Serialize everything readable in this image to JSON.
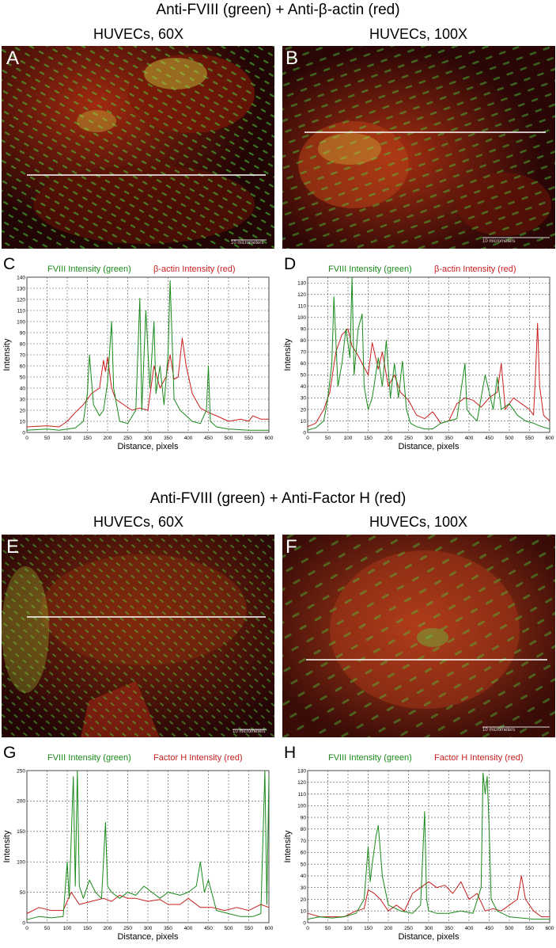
{
  "sections": [
    {
      "title": "Anti-FVIII (green) + Anti-β-actin (red)",
      "left_col": "HUVECs, 60X",
      "right_col": "HUVECs, 100X"
    },
    {
      "title": "Anti-FVIII (green) + Anti-Factor H (red)",
      "left_col": "HUVECs, 60X",
      "right_col": "HUVECs, 100X"
    }
  ],
  "panels": {
    "A": {
      "label": "A",
      "scalebar": "10 micrometers"
    },
    "B": {
      "label": "B",
      "scalebar": "10 micrometers"
    },
    "E": {
      "label": "E",
      "scalebar": "10 micrometers"
    },
    "F": {
      "label": "F",
      "scalebar": "10 micrometers"
    },
    "C": {
      "label": "C"
    },
    "D": {
      "label": "D"
    },
    "G": {
      "label": "G"
    },
    "H": {
      "label": "H"
    }
  },
  "colors": {
    "green": "#1a8a1a",
    "red": "#c81e1e"
  },
  "chart_data": [
    {
      "panel": "C",
      "type": "line",
      "xlabel": "Distance, pixels",
      "ylabel": "Intensity",
      "xlim": [
        0,
        600
      ],
      "ylim": [
        0,
        140
      ],
      "xticks": [
        0,
        50,
        100,
        150,
        200,
        250,
        300,
        350,
        400,
        450,
        500,
        550,
        600
      ],
      "yticks": [
        0,
        10,
        20,
        30,
        40,
        50,
        60,
        70,
        80,
        90,
        100,
        110,
        120,
        130,
        140
      ],
      "series": [
        {
          "name": "FVIII Intensity (green)",
          "color": "green",
          "x": [
            0,
            50,
            80,
            100,
            120,
            140,
            150,
            155,
            165,
            180,
            190,
            200,
            210,
            215,
            230,
            250,
            270,
            280,
            285,
            295,
            305,
            315,
            320,
            330,
            340,
            350,
            355,
            365,
            380,
            395,
            410,
            430,
            445,
            450,
            455,
            470,
            500,
            550,
            600
          ],
          "y": [
            2,
            3,
            2,
            3,
            4,
            10,
            35,
            70,
            25,
            15,
            20,
            45,
            100,
            40,
            10,
            8,
            20,
            121,
            20,
            110,
            40,
            100,
            35,
            60,
            25,
            70,
            137,
            30,
            20,
            15,
            10,
            8,
            20,
            60,
            10,
            5,
            3,
            2,
            2
          ]
        },
        {
          "name": "β-actin Intensity (red)",
          "color": "red",
          "x": [
            0,
            50,
            80,
            100,
            120,
            140,
            160,
            180,
            190,
            195,
            200,
            210,
            220,
            240,
            260,
            280,
            300,
            315,
            330,
            345,
            355,
            365,
            375,
            385,
            395,
            410,
            430,
            450,
            470,
            500,
            530,
            550,
            560,
            580,
            600
          ],
          "y": [
            5,
            6,
            5,
            10,
            18,
            25,
            35,
            40,
            65,
            55,
            68,
            40,
            30,
            25,
            20,
            22,
            20,
            60,
            40,
            50,
            70,
            48,
            50,
            85,
            60,
            35,
            22,
            18,
            15,
            10,
            12,
            10,
            15,
            12,
            12
          ]
        }
      ]
    },
    {
      "panel": "D",
      "type": "line",
      "xlabel": "Distance, pixels",
      "ylabel": "Intensity",
      "xlim": [
        0,
        600
      ],
      "ylim": [
        0,
        135
      ],
      "xticks": [
        0,
        50,
        100,
        150,
        200,
        250,
        300,
        350,
        400,
        450,
        500,
        550,
        600
      ],
      "yticks": [
        0,
        10,
        20,
        30,
        40,
        50,
        60,
        70,
        80,
        90,
        100,
        110,
        120,
        130
      ],
      "series": [
        {
          "name": "FVIII Intensity (green)",
          "color": "green",
          "x": [
            0,
            20,
            40,
            50,
            60,
            65,
            75,
            85,
            95,
            105,
            110,
            115,
            125,
            135,
            140,
            150,
            160,
            175,
            185,
            195,
            205,
            215,
            225,
            235,
            245,
            255,
            270,
            290,
            310,
            330,
            350,
            370,
            390,
            395,
            405,
            420,
            440,
            460,
            470,
            480,
            500,
            520,
            540,
            560,
            580,
            600
          ],
          "y": [
            2,
            4,
            10,
            30,
            60,
            118,
            40,
            60,
            90,
            65,
            135,
            50,
            90,
            103,
            40,
            20,
            30,
            65,
            40,
            80,
            30,
            60,
            30,
            62,
            20,
            8,
            5,
            3,
            3,
            8,
            10,
            12,
            60,
            20,
            15,
            10,
            50,
            20,
            48,
            20,
            25,
            15,
            10,
            8,
            5,
            3
          ]
        },
        {
          "name": "β-actin Intensity (red)",
          "color": "red",
          "x": [
            0,
            20,
            40,
            55,
            70,
            85,
            100,
            110,
            120,
            135,
            150,
            160,
            175,
            185,
            200,
            215,
            230,
            250,
            270,
            290,
            310,
            330,
            350,
            370,
            390,
            410,
            430,
            450,
            470,
            480,
            490,
            510,
            530,
            550,
            560,
            565,
            570,
            575,
            585,
            600
          ],
          "y": [
            5,
            8,
            20,
            35,
            70,
            85,
            90,
            75,
            70,
            60,
            50,
            78,
            55,
            70,
            40,
            50,
            35,
            28,
            15,
            12,
            18,
            8,
            10,
            25,
            30,
            28,
            22,
            30,
            35,
            60,
            20,
            30,
            25,
            20,
            15,
            50,
            95,
            40,
            15,
            10
          ]
        }
      ]
    },
    {
      "panel": "G",
      "type": "line",
      "xlabel": "Distance, pixels",
      "ylabel": "Intensity",
      "xlim": [
        0,
        600
      ],
      "ylim": [
        0,
        250
      ],
      "xticks": [
        0,
        50,
        100,
        150,
        200,
        250,
        300,
        350,
        400,
        450,
        500,
        550,
        600
      ],
      "yticks": [
        0,
        50,
        100,
        150,
        200,
        250
      ],
      "series": [
        {
          "name": "FVIII Intensity (green)",
          "color": "green",
          "x": [
            0,
            30,
            60,
            90,
            100,
            105,
            115,
            120,
            125,
            130,
            140,
            155,
            170,
            185,
            195,
            200,
            210,
            230,
            250,
            270,
            290,
            310,
            330,
            350,
            380,
            400,
            420,
            430,
            440,
            450,
            470,
            500,
            530,
            560,
            580,
            590,
            595,
            600
          ],
          "y": [
            5,
            10,
            8,
            10,
            100,
            40,
            240,
            60,
            250,
            60,
            40,
            70,
            50,
            40,
            165,
            60,
            50,
            40,
            50,
            45,
            60,
            50,
            40,
            50,
            45,
            50,
            60,
            100,
            50,
            70,
            20,
            15,
            10,
            10,
            15,
            250,
            30,
            240
          ]
        },
        {
          "name": "Factor H Intensity (red)",
          "color": "red",
          "x": [
            0,
            30,
            60,
            90,
            110,
            130,
            160,
            190,
            210,
            230,
            250,
            270,
            300,
            330,
            350,
            380,
            400,
            430,
            460,
            490,
            520,
            550,
            580,
            600
          ],
          "y": [
            15,
            25,
            20,
            20,
            50,
            30,
            35,
            40,
            35,
            45,
            40,
            40,
            35,
            38,
            30,
            30,
            40,
            25,
            25,
            20,
            25,
            20,
            30,
            25
          ]
        }
      ]
    },
    {
      "panel": "H",
      "type": "line",
      "xlabel": "Distance, pixels",
      "ylabel": "Intensity",
      "xlim": [
        0,
        600
      ],
      "ylim": [
        0,
        130
      ],
      "xticks": [
        0,
        50,
        100,
        150,
        200,
        250,
        300,
        350,
        400,
        450,
        500,
        550,
        600
      ],
      "yticks": [
        0,
        10,
        20,
        30,
        40,
        50,
        60,
        70,
        80,
        90,
        100,
        110,
        120,
        130
      ],
      "series": [
        {
          "name": "FVIII Intensity (green)",
          "color": "green",
          "x": [
            0,
            30,
            60,
            90,
            120,
            140,
            150,
            155,
            160,
            170,
            175,
            185,
            200,
            230,
            260,
            280,
            290,
            295,
            300,
            320,
            350,
            380,
            410,
            430,
            435,
            440,
            445,
            450,
            455,
            470,
            500,
            530,
            560,
            600
          ],
          "y": [
            3,
            5,
            4,
            5,
            8,
            20,
            65,
            35,
            50,
            75,
            83,
            40,
            15,
            10,
            8,
            15,
            95,
            20,
            10,
            8,
            8,
            10,
            8,
            30,
            128,
            110,
            125,
            80,
            20,
            10,
            5,
            4,
            3,
            3
          ]
        },
        {
          "name": "Factor H Intensity (red)",
          "color": "red",
          "x": [
            0,
            30,
            60,
            90,
            120,
            140,
            150,
            165,
            180,
            200,
            220,
            240,
            260,
            280,
            300,
            320,
            340,
            360,
            380,
            400,
            420,
            440,
            460,
            480,
            500,
            520,
            530,
            540,
            560,
            580,
            600
          ],
          "y": [
            8,
            5,
            5,
            5,
            10,
            12,
            28,
            25,
            20,
            10,
            15,
            10,
            25,
            30,
            35,
            30,
            32,
            25,
            35,
            20,
            25,
            10,
            12,
            10,
            15,
            20,
            40,
            20,
            10,
            5,
            5
          ]
        }
      ]
    }
  ]
}
